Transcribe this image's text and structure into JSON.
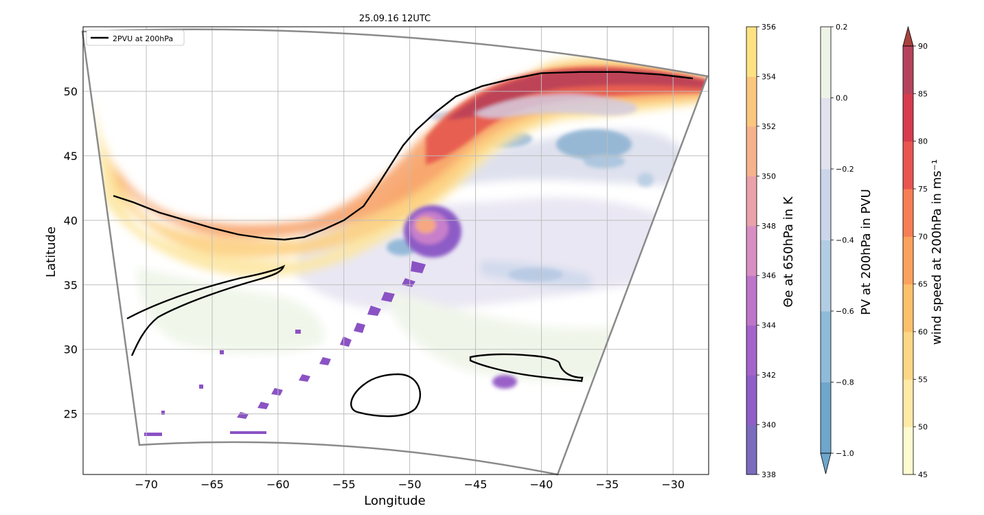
{
  "title": "25.09.16 12UTC",
  "axes": {
    "xlabel": "Longitude",
    "ylabel": "Latitude",
    "xlim": [
      -74.8,
      -27.3
    ],
    "ylim": [
      20.3,
      55.0
    ],
    "xticks": [
      -70,
      -65,
      -60,
      -55,
      -50,
      -45,
      -40,
      -35,
      -30
    ],
    "yticks": [
      25,
      30,
      35,
      40,
      45,
      50
    ],
    "grid": true
  },
  "legend": {
    "label": "2PVU at 200hPa",
    "placement": "top-left"
  },
  "colorbars": [
    {
      "label": "Θe at 650hPa in K",
      "min": 338,
      "max": 356,
      "ticks": [
        338,
        340,
        342,
        344,
        346,
        348,
        350,
        352,
        354,
        356
      ],
      "colors": [
        "#7a6bbd",
        "#8f5fc7",
        "#a463c9",
        "#bc75c9",
        "#d78fc3",
        "#e9a2aa",
        "#f5b38c",
        "#fbc77e",
        "#fde283"
      ]
    },
    {
      "label": "PV at 200hPa in PVU",
      "min": -1.0,
      "max": 0.2,
      "ticks": [
        -1.0,
        -0.8,
        -0.6,
        -0.4,
        -0.2,
        0.0,
        0.2
      ],
      "tick_labels": [
        "−1.0",
        "−0.8",
        "−0.6",
        "−0.4",
        "−0.2",
        "0.0",
        "0.2"
      ],
      "colors": [
        "#6ea6cc",
        "#8ebbd8",
        "#b2cde3",
        "#ccd6ea",
        "#e2e1ee",
        "#eef3e8"
      ],
      "extend": "min"
    },
    {
      "label": "wind speed at 200hPa in ms⁻¹",
      "min": 45,
      "max": 90,
      "ticks": [
        45,
        50,
        55,
        60,
        65,
        70,
        75,
        80,
        85,
        90
      ],
      "colors": [
        "#fffbd1",
        "#fee9a6",
        "#fdd685",
        "#fdc06a",
        "#fba15b",
        "#f77e54",
        "#e95550",
        "#d63c4d",
        "#b6435c"
      ],
      "extend": "max"
    }
  ],
  "colors": {
    "frame": "#8a8a8a",
    "contour": "#000000",
    "grid": "#bdbdbd"
  },
  "chart_data": {
    "type": "contour-map",
    "contour_2pvu_lon_lat": [
      [
        -72.5,
        41.9
      ],
      [
        -71,
        41.4
      ],
      [
        -69,
        40.6
      ],
      [
        -67,
        40.0
      ],
      [
        -65,
        39.4
      ],
      [
        -63,
        38.9
      ],
      [
        -61,
        38.6
      ],
      [
        -59.5,
        38.5
      ],
      [
        -58,
        38.7
      ],
      [
        -56.5,
        39.3
      ],
      [
        -55,
        40.0
      ],
      [
        -53.5,
        41.1
      ],
      [
        -52.5,
        42.6
      ],
      [
        -51.5,
        44.2
      ],
      [
        -50.5,
        45.8
      ],
      [
        -49.5,
        47.0
      ],
      [
        -48,
        48.4
      ],
      [
        -46.5,
        49.6
      ],
      [
        -44.5,
        50.4
      ],
      [
        -42.5,
        50.9
      ],
      [
        -40,
        51.4
      ],
      [
        -37,
        51.5
      ],
      [
        -34,
        51.5
      ],
      [
        -31,
        51.3
      ],
      [
        -28.5,
        51.0
      ]
    ],
    "annotations": []
  }
}
